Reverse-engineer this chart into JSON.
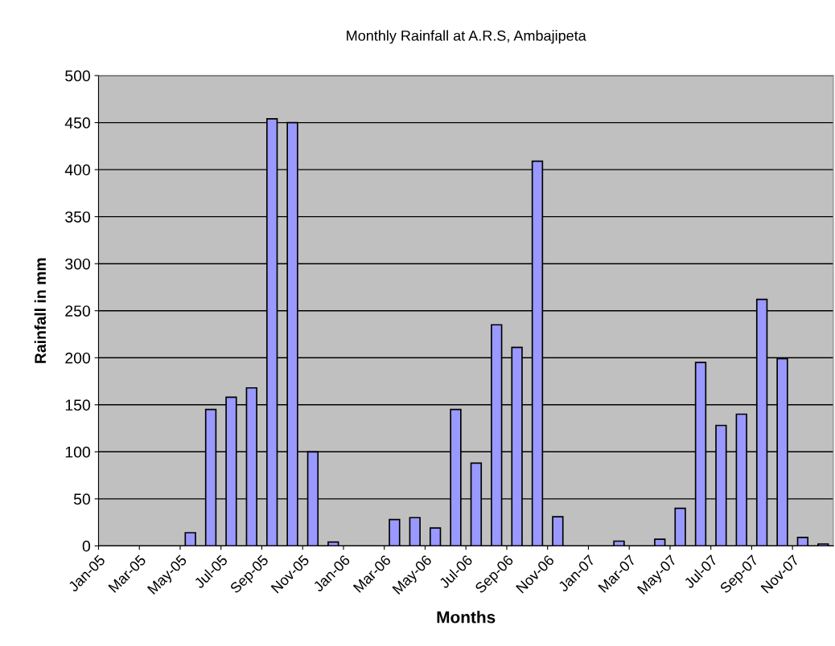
{
  "chart_data": {
    "type": "bar",
    "title": "Monthly Rainfall at A.R.S, Ambajipeta",
    "xlabel": "Months",
    "ylabel": "Rainfall in mm",
    "categories": [
      "Jan-05",
      null,
      "Mar-05",
      null,
      "May-05",
      null,
      "Jul-05",
      null,
      "Sep-05",
      null,
      "Nov-05",
      null,
      "Jan-06",
      null,
      "Mar-06",
      null,
      "May-06",
      null,
      "Jul-06",
      null,
      "Sep-06",
      null,
      "Nov-06",
      null,
      "Jan-07",
      null,
      "Mar-07",
      null,
      "May-07",
      null,
      "Jul-07",
      null,
      "Sep-07",
      null,
      "Nov-07",
      null
    ],
    "values": [
      null,
      null,
      null,
      null,
      14,
      145,
      158,
      168,
      454,
      450,
      100,
      4,
      null,
      null,
      28,
      30,
      19,
      145,
      88,
      235,
      211,
      409,
      31,
      null,
      null,
      5,
      null,
      7,
      40,
      195,
      128,
      140,
      262,
      199,
      9,
      2
    ],
    "color": "#9999ff",
    "ylim": [
      0,
      500
    ],
    "yticks": [
      0,
      50,
      100,
      150,
      200,
      250,
      300,
      350,
      400,
      450,
      500
    ],
    "grid": "y",
    "legend": false
  }
}
